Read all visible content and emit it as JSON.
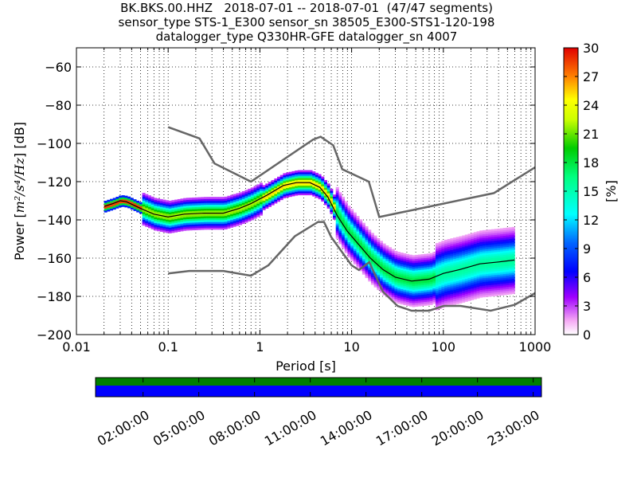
{
  "chart_data": {
    "type": "heatmap",
    "title_lines": [
      "BK.BKS.00.HHZ   2018-07-01 -- 2018-07-01  (47/47 segments)",
      "sensor_type STS-1_E300 sensor_sn 38505_E300-STS1-120-198",
      "datalogger_type Q330HR-GFE datalogger_sn 4007"
    ],
    "xlabel": "Period [s]",
    "ylabel_prefix": "Power [",
    "ylabel_math": "m²/s⁴/Hz",
    "ylabel_suffix": "] [dB]",
    "x_scale": "log",
    "xlim": [
      0.01,
      1000
    ],
    "x_ticks": [
      0.01,
      0.1,
      1,
      10,
      100,
      1000
    ],
    "x_tick_labels": [
      "0.01",
      "0.1",
      "1",
      "10",
      "100",
      "1000"
    ],
    "ylim": [
      -200,
      -50
    ],
    "y_ticks": [
      -200,
      -180,
      -160,
      -140,
      -120,
      -100,
      -80,
      -60
    ],
    "y_tick_labels": [
      "−200",
      "−180",
      "−160",
      "−140",
      "−120",
      "−100",
      "−80",
      "−60"
    ],
    "grid": true,
    "colorbar": {
      "label": "[%]",
      "ticks": [
        0,
        3,
        6,
        9,
        12,
        15,
        18,
        21,
        24,
        27,
        30
      ],
      "tick_labels": [
        "0",
        "3",
        "6",
        "9",
        "12",
        "15",
        "18",
        "21",
        "24",
        "27",
        "30"
      ],
      "range": [
        0,
        30
      ],
      "colormap": "pqlx"
    },
    "noise_model_high": {
      "name": "NHNM",
      "periods": [
        0.1,
        0.22,
        0.32,
        0.8,
        3.8,
        4.6,
        6.3,
        7.9,
        15.4,
        20,
        354.8,
        1000
      ],
      "values": [
        -91.5,
        -97.4,
        -110.5,
        -120,
        -98,
        -96.5,
        -101,
        -113.5,
        -120,
        -138.5,
        -126,
        -112.5
      ]
    },
    "noise_model_low": {
      "name": "NLNM",
      "periods": [
        0.1,
        0.17,
        0.4,
        0.8,
        1.24,
        2.4,
        4.3,
        5,
        6,
        10,
        12,
        15.6,
        21.9,
        31.6,
        45,
        70,
        101,
        154,
        328,
        600,
        1000
      ],
      "values": [
        -168,
        -166.7,
        -166.7,
        -169.2,
        -163.7,
        -148.6,
        -141.1,
        -141.1,
        -149,
        -163.8,
        -166.2,
        -162.1,
        -177.5,
        -185,
        -187.5,
        -187.5,
        -185,
        -185,
        -187.5,
        -184.4,
        -178.3
      ]
    },
    "median_psd": {
      "name": "median",
      "periods": [
        0.02,
        0.025,
        0.03,
        0.035,
        0.05,
        0.07,
        0.1,
        0.15,
        0.25,
        0.4,
        0.6,
        0.8,
        1.2,
        1.8,
        2.5,
        3.5,
        4.5,
        5.5,
        7,
        9,
        12,
        16,
        22,
        30,
        45,
        70,
        100,
        150,
        250,
        400,
        600
      ],
      "values": [
        -133,
        -131.5,
        -130,
        -130.5,
        -134,
        -137,
        -138.5,
        -137,
        -136.5,
        -136.5,
        -134,
        -131.5,
        -127,
        -122,
        -120.5,
        -120.5,
        -123,
        -128,
        -138,
        -146,
        -153,
        -160,
        -166,
        -170,
        -172,
        -171,
        -168,
        -166,
        -163,
        -162,
        -161
      ]
    },
    "time_bar": {
      "tick_labels": [
        "02:00:00",
        "05:00:00",
        "08:00:00",
        "11:00:00",
        "14:00:00",
        "17:00:00",
        "20:00:00",
        "23:00:00"
      ],
      "colors": {
        "top": "#007f00",
        "bottom": "#0000ff"
      }
    }
  }
}
